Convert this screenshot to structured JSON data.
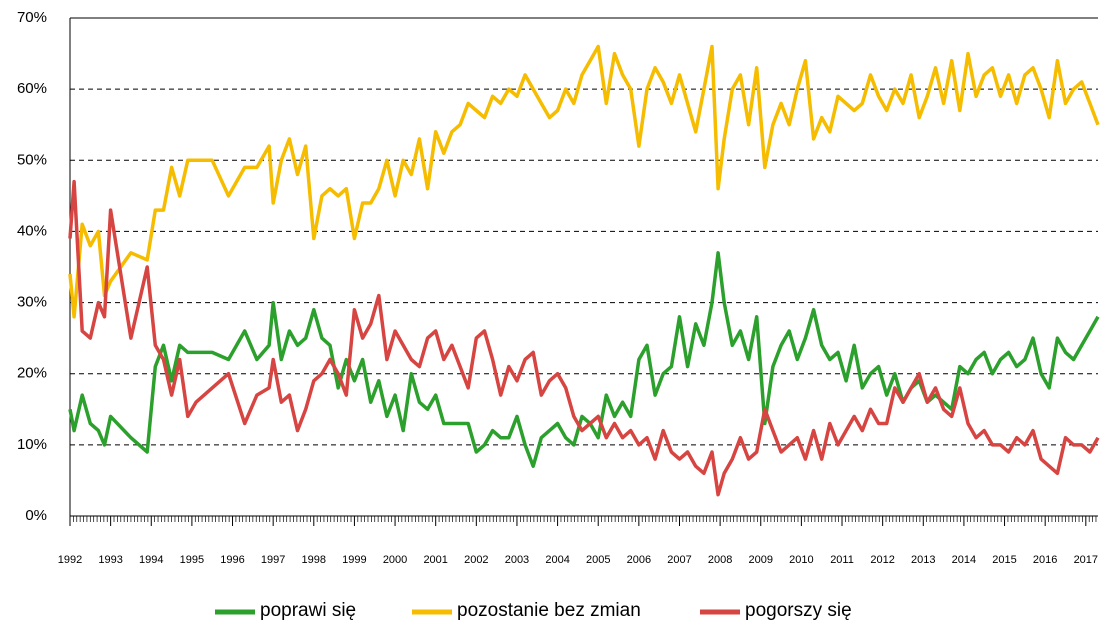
{
  "chart_data": {
    "type": "line",
    "x": [
      1992.0,
      1992.1,
      1992.3,
      1992.5,
      1992.7,
      1992.85,
      1993.0,
      1993.5,
      1993.9,
      1994.1,
      1994.3,
      1994.5,
      1994.7,
      1994.9,
      1995.1,
      1995.5,
      1995.9,
      1996.3,
      1996.6,
      1996.9,
      1997.0,
      1997.2,
      1997.4,
      1997.6,
      1997.8,
      1998.0,
      1998.2,
      1998.4,
      1998.6,
      1998.8,
      1999.0,
      1999.2,
      1999.4,
      1999.6,
      1999.8,
      2000.0,
      2000.2,
      2000.4,
      2000.6,
      2000.8,
      2001.0,
      2001.2,
      2001.4,
      2001.6,
      2001.8,
      2002.0,
      2002.2,
      2002.4,
      2002.6,
      2002.8,
      2003.0,
      2003.2,
      2003.4,
      2003.6,
      2003.8,
      2004.0,
      2004.2,
      2004.4,
      2004.6,
      2004.8,
      2005.0,
      2005.2,
      2005.4,
      2005.6,
      2005.8,
      2006.0,
      2006.2,
      2006.4,
      2006.6,
      2006.8,
      2007.0,
      2007.2,
      2007.4,
      2007.6,
      2007.8,
      2007.95,
      2008.1,
      2008.3,
      2008.5,
      2008.7,
      2008.9,
      2009.1,
      2009.3,
      2009.5,
      2009.7,
      2009.9,
      2010.1,
      2010.3,
      2010.5,
      2010.7,
      2010.9,
      2011.1,
      2011.3,
      2011.5,
      2011.7,
      2011.9,
      2012.1,
      2012.3,
      2012.5,
      2012.7,
      2012.9,
      2013.1,
      2013.3,
      2013.5,
      2013.7,
      2013.9,
      2014.1,
      2014.3,
      2014.5,
      2014.7,
      2014.9,
      2015.1,
      2015.3,
      2015.5,
      2015.7,
      2015.9,
      2016.1,
      2016.3,
      2016.5,
      2016.7,
      2016.9,
      2017.1,
      2017.3
    ],
    "series": [
      {
        "name": "poprawi się",
        "color": "#2ca02c",
        "values": [
          15,
          12,
          17,
          13,
          12,
          10,
          14,
          11,
          9,
          21,
          24,
          19,
          24,
          23,
          23,
          23,
          22,
          26,
          22,
          24,
          30,
          22,
          26,
          24,
          25,
          29,
          25,
          24,
          18,
          22,
          19,
          22,
          16,
          19,
          14,
          17,
          12,
          20,
          16,
          15,
          17,
          13,
          13,
          13,
          13,
          9,
          10,
          12,
          11,
          11,
          14,
          10,
          7,
          11,
          12,
          13,
          11,
          10,
          14,
          13,
          11,
          17,
          14,
          16,
          14,
          22,
          24,
          17,
          20,
          21,
          28,
          21,
          27,
          24,
          30,
          37,
          30,
          24,
          26,
          22,
          28,
          13,
          21,
          24,
          26,
          22,
          25,
          29,
          24,
          22,
          23,
          19,
          24,
          18,
          20,
          21,
          17,
          20,
          16,
          18,
          19,
          16,
          17,
          16,
          15,
          21,
          20,
          22,
          23,
          20,
          22,
          23,
          21,
          22,
          25,
          20,
          18,
          25,
          23,
          22,
          24,
          26,
          28
        ]
      },
      {
        "name": "pozostanie bez zmian",
        "color": "#f5bc00",
        "values": [
          34,
          28,
          41,
          38,
          40,
          31,
          33,
          37,
          36,
          43,
          43,
          49,
          45,
          50,
          50,
          50,
          45,
          49,
          49,
          52,
          44,
          50,
          53,
          48,
          52,
          39,
          45,
          46,
          45,
          46,
          39,
          44,
          44,
          46,
          50,
          45,
          50,
          48,
          53,
          46,
          54,
          51,
          54,
          55,
          58,
          57,
          56,
          59,
          58,
          60,
          59,
          62,
          60,
          58,
          56,
          57,
          60,
          58,
          62,
          64,
          66,
          58,
          65,
          62,
          60,
          52,
          60,
          63,
          61,
          58,
          62,
          58,
          54,
          60,
          66,
          46,
          53,
          60,
          62,
          55,
          63,
          49,
          55,
          58,
          55,
          60,
          64,
          53,
          56,
          54,
          59,
          58,
          57,
          58,
          62,
          59,
          57,
          60,
          58,
          62,
          56,
          59,
          63,
          58,
          64,
          57,
          65,
          59,
          62,
          63,
          59,
          62,
          58,
          62,
          63,
          60,
          56,
          64,
          58,
          60,
          61,
          58,
          55
        ]
      },
      {
        "name": "pogorszy się",
        "color": "#d64541",
        "values": [
          39,
          47,
          26,
          25,
          30,
          28,
          43,
          25,
          35,
          24,
          22,
          17,
          22,
          14,
          16,
          18,
          20,
          13,
          17,
          18,
          22,
          16,
          17,
          12,
          15,
          19,
          20,
          22,
          20,
          17,
          29,
          25,
          27,
          31,
          22,
          26,
          24,
          22,
          21,
          25,
          26,
          22,
          24,
          21,
          18,
          25,
          26,
          22,
          17,
          21,
          19,
          22,
          23,
          17,
          19,
          20,
          18,
          14,
          12,
          13,
          14,
          11,
          13,
          11,
          12,
          10,
          11,
          8,
          12,
          9,
          8,
          9,
          7,
          6,
          9,
          3,
          6,
          8,
          11,
          8,
          9,
          15,
          12,
          9,
          10,
          11,
          8,
          12,
          8,
          13,
          10,
          12,
          14,
          12,
          15,
          13,
          13,
          18,
          16,
          18,
          20,
          16,
          18,
          15,
          14,
          18,
          13,
          11,
          12,
          10,
          10,
          9,
          11,
          10,
          12,
          8,
          7,
          6,
          11,
          10,
          10,
          9,
          11
        ]
      }
    ],
    "xlim": [
      1992,
      2017.3
    ],
    "xticks": [
      1992,
      1993,
      1994,
      1995,
      1996,
      1997,
      1998,
      1999,
      2000,
      2001,
      2002,
      2003,
      2004,
      2005,
      2006,
      2007,
      2008,
      2009,
      2010,
      2011,
      2012,
      2013,
      2014,
      2015,
      2016,
      2017
    ],
    "ylim": [
      0,
      70
    ],
    "yticks": [
      {
        "value": 0,
        "label": "0%"
      },
      {
        "value": 10,
        "label": "10%"
      },
      {
        "value": 20,
        "label": "20%"
      },
      {
        "value": 30,
        "label": "30%"
      },
      {
        "value": 40,
        "label": "40%"
      },
      {
        "value": 50,
        "label": "50%"
      },
      {
        "value": 60,
        "label": "60%"
      },
      {
        "value": 70,
        "label": "70%"
      }
    ],
    "grid": true
  }
}
